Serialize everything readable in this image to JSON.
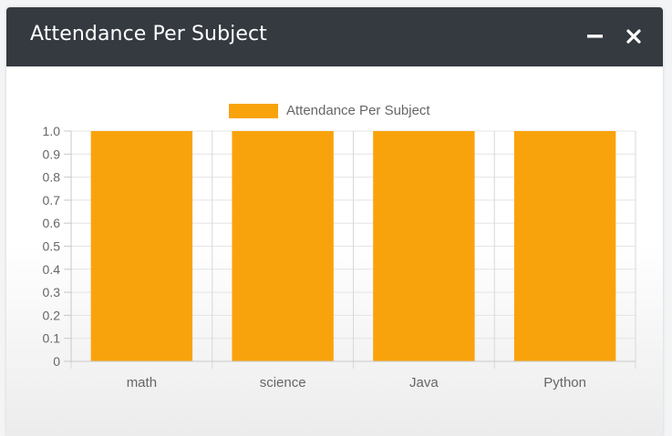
{
  "window": {
    "title": "Attendance Per Subject",
    "minimize_icon": "minus-icon",
    "close_icon": "close-icon"
  },
  "colors": {
    "header_bg": "#343a40",
    "bar": "#f9a30c",
    "grid": "#e4e4e4",
    "tick_text": "#666666"
  },
  "chart_data": {
    "type": "bar",
    "title": "",
    "categories": [
      "math",
      "science",
      "Java",
      "Python"
    ],
    "series": [
      {
        "name": "Attendance Per Subject",
        "values": [
          1.0,
          1.0,
          1.0,
          1.0
        ]
      }
    ],
    "ylim": [
      0,
      1.0
    ],
    "yticks": [
      "0",
      "0.1",
      "0.2",
      "0.3",
      "0.4",
      "0.5",
      "0.6",
      "0.7",
      "0.8",
      "0.9",
      "1.0"
    ],
    "xlabel": "",
    "ylabel": "",
    "legend": "top-center",
    "grid": true
  }
}
